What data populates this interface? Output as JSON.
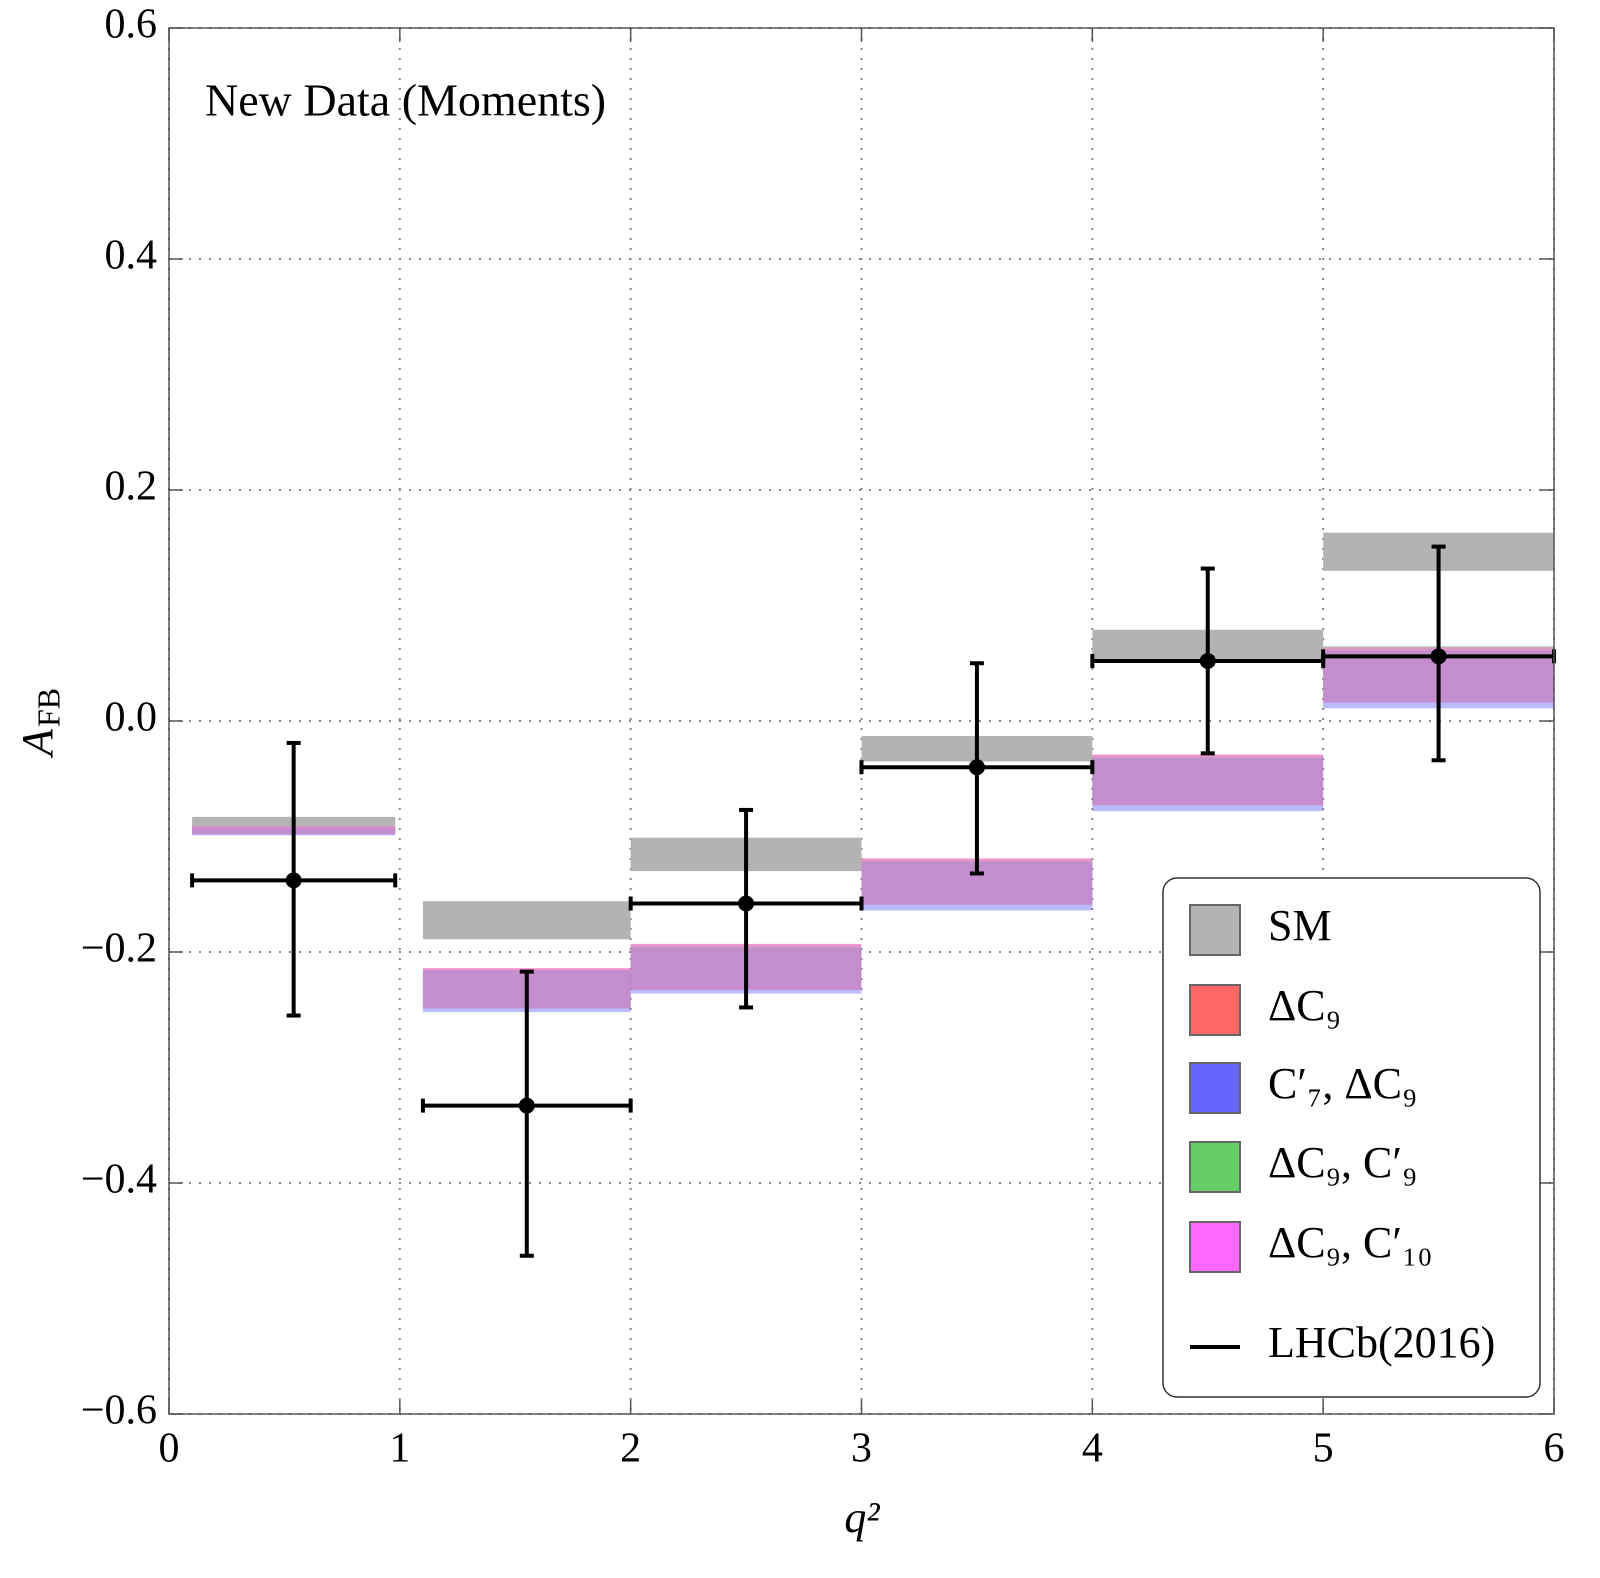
{
  "chart_data": {
    "type": "band",
    "annotation": "New Data (Moments)",
    "x_label": "q²",
    "y_label": {
      "main": "A",
      "sub": "FB"
    },
    "xlim": [
      0,
      6
    ],
    "ylim": [
      -0.6,
      0.6
    ],
    "xticks": [
      0,
      1,
      2,
      3,
      4,
      5,
      6
    ],
    "yticks": [
      {
        "value": -0.6,
        "label": "−0.6"
      },
      {
        "value": -0.4,
        "label": "−0.4"
      },
      {
        "value": -0.2,
        "label": "−0.2"
      },
      {
        "value": 0,
        "label": "0.0"
      },
      0.2,
      0.4,
      0.6
    ],
    "grid": true,
    "legend": "lower right",
    "series": [
      {
        "name": "SM",
        "color": "#b3b3b3",
        "x_low": [
          0.1,
          1.1,
          2,
          3,
          4,
          5
        ],
        "x_high": [
          0.98,
          2,
          3,
          4,
          5,
          6
        ],
        "low": [
          -0.091,
          -0.189,
          -0.13,
          -0.035,
          0.053,
          0.13
        ],
        "high": [
          -0.083,
          -0.156,
          -0.101,
          -0.013,
          0.079,
          0.163
        ]
      },
      {
        "name": "ΔC₉",
        "color": "#ff6666",
        "x_low": [
          0.1,
          1.1,
          2,
          3,
          4,
          5
        ],
        "x_high": [
          0.98,
          2,
          3,
          4,
          5,
          6
        ],
        "low": [
          -0.098,
          -0.248,
          -0.232,
          -0.159,
          -0.073,
          0.016
        ],
        "high": [
          -0.091,
          -0.214,
          -0.193,
          -0.119,
          -0.029,
          0.064
        ]
      },
      {
        "name": "C′₇, ΔC₉",
        "color": "#6666ff",
        "x_low": [
          0.1,
          1.1,
          2,
          3,
          4,
          5
        ],
        "x_high": [
          0.98,
          2,
          3,
          4,
          5,
          6
        ],
        "low": [
          -0.099,
          -0.252,
          -0.236,
          -0.164,
          -0.078,
          0.011
        ],
        "high": [
          -0.092,
          -0.216,
          -0.196,
          -0.122,
          -0.032,
          0.061
        ]
      },
      {
        "name": "ΔC₉, C′₉",
        "color": "#66cc66",
        "x_low": [
          0.1,
          1.1,
          2,
          3,
          4,
          5
        ],
        "x_high": [
          0.98,
          2,
          3,
          4,
          5,
          6
        ],
        "low": [
          -0.098,
          -0.249,
          -0.233,
          -0.159,
          -0.073,
          0.016
        ],
        "high": [
          -0.091,
          -0.215,
          -0.194,
          -0.12,
          -0.03,
          0.065
        ]
      },
      {
        "name": "ΔC₉, C′₁₀",
        "color": "#ff66ff",
        "x_low": [
          0.1,
          1.1,
          2,
          3,
          4,
          5
        ],
        "x_high": [
          0.98,
          2,
          3,
          4,
          5,
          6
        ],
        "low": [
          -0.098,
          -0.249,
          -0.233,
          -0.159,
          -0.073,
          0.016
        ],
        "high": [
          -0.091,
          -0.214,
          -0.193,
          -0.119,
          -0.029,
          0.064
        ]
      }
    ],
    "points": {
      "name": "LHCb(2016)",
      "color": "#000000",
      "x": [
        0.54,
        1.55,
        2.5,
        3.5,
        4.5,
        5.5
      ],
      "values": [
        -0.138,
        -0.333,
        -0.158,
        -0.04,
        0.052,
        0.056
      ],
      "low": [
        -0.255,
        -0.463,
        -0.248,
        -0.132,
        -0.028,
        -0.034
      ],
      "high": [
        -0.019,
        -0.217,
        -0.077,
        0.05,
        0.132,
        0.151
      ],
      "x_low": [
        0.1,
        1.1,
        2,
        3,
        4,
        5
      ],
      "x_high": [
        0.98,
        2,
        3,
        4,
        5,
        6
      ]
    }
  }
}
